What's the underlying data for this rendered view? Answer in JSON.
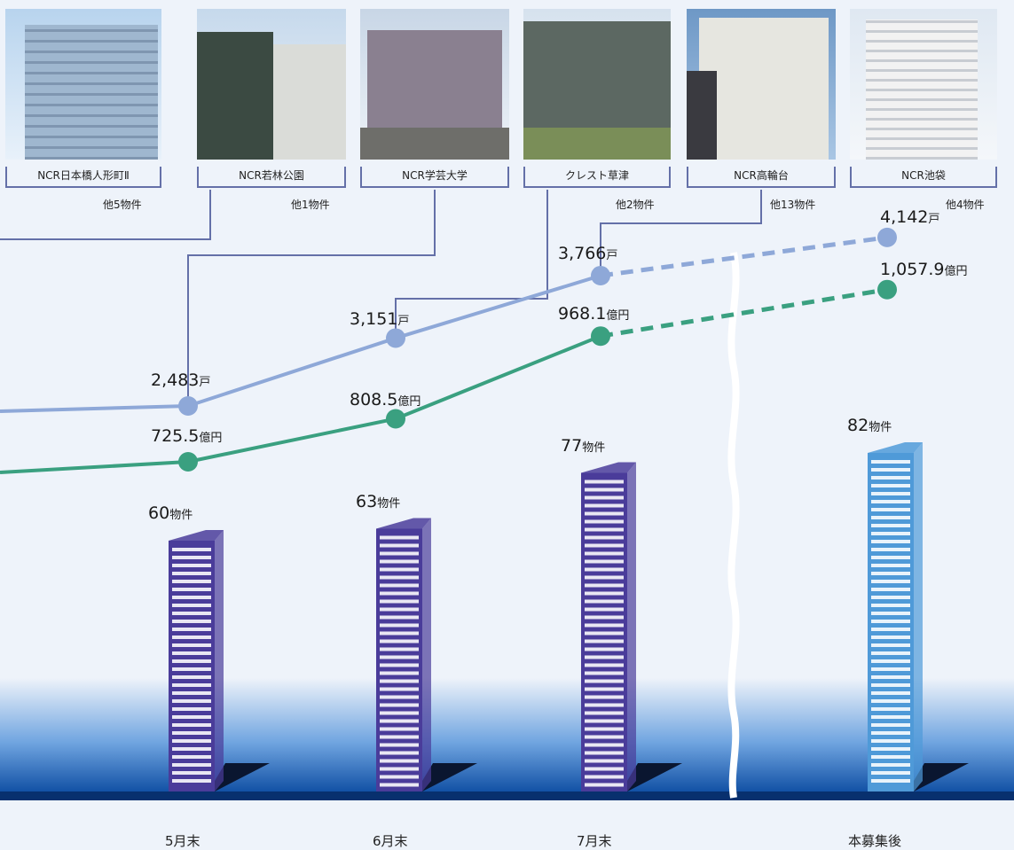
{
  "properties": [
    {
      "name": "NCR日本橋人形町Ⅱ",
      "others": "他5物件"
    },
    {
      "name": "NCR若林公園",
      "others": "他1物件"
    },
    {
      "name": "NCR学芸大学",
      "others": ""
    },
    {
      "name": "クレスト草津",
      "others": "他2物件"
    },
    {
      "name": "NCR高輪台",
      "others": "他13物件"
    },
    {
      "name": "NCR池袋",
      "others": "他4物件"
    }
  ],
  "chart_data": {
    "type": "line",
    "categories": [
      "5月末",
      "6月末",
      "7月末",
      "本募集後"
    ],
    "series": [
      {
        "values": [
          2483,
          3151,
          3766,
          4142
        ],
        "labels": [
          "2,483",
          "3,151",
          "3,766",
          "4,142"
        ],
        "unit": "戸",
        "color": "#8ea8d8"
      },
      {
        "values": [
          725.5,
          808.5,
          968.1,
          1057.9
        ],
        "labels": [
          "725.5",
          "808.5",
          "968.1",
          "1,057.9"
        ],
        "unit": "億円",
        "color": "#3aa080"
      }
    ],
    "bars": {
      "values": [
        60,
        63,
        77,
        82
      ],
      "labels": [
        "60",
        "63",
        "77",
        "82"
      ],
      "unit": "物件",
      "colors": [
        "#4a3c9a",
        "#4a3c9a",
        "#4a3c9a",
        "#4f9ad8"
      ]
    }
  },
  "colors": {
    "background": "#eef3fa",
    "base_band": "#0a4aa0",
    "bar_shadow": "#0a1630"
  }
}
